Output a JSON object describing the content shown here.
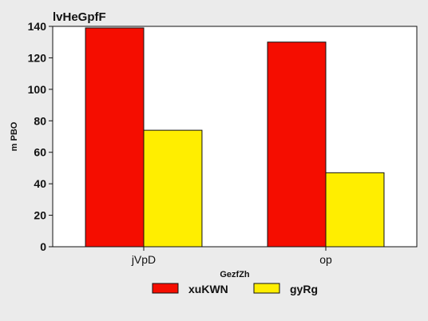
{
  "chart_data": {
    "type": "bar",
    "title": "lvHeGpfF",
    "xlabel": "GezfZh",
    "ylabel": "m  PBO",
    "categories": [
      "jVpD",
      "op"
    ],
    "series": [
      {
        "name": "xuKWN",
        "values": [
          139,
          130
        ],
        "color": "#f50d00"
      },
      {
        "name": "gyRg",
        "values": [
          74,
          47
        ],
        "color": "#ffee00"
      }
    ],
    "ylim": [
      0,
      140
    ],
    "yticks": [
      0,
      20,
      40,
      60,
      80,
      100,
      120,
      140
    ],
    "grid": false,
    "legend": "bottom-center",
    "background": "#ebebeb",
    "plot_background": "#ffffff"
  }
}
